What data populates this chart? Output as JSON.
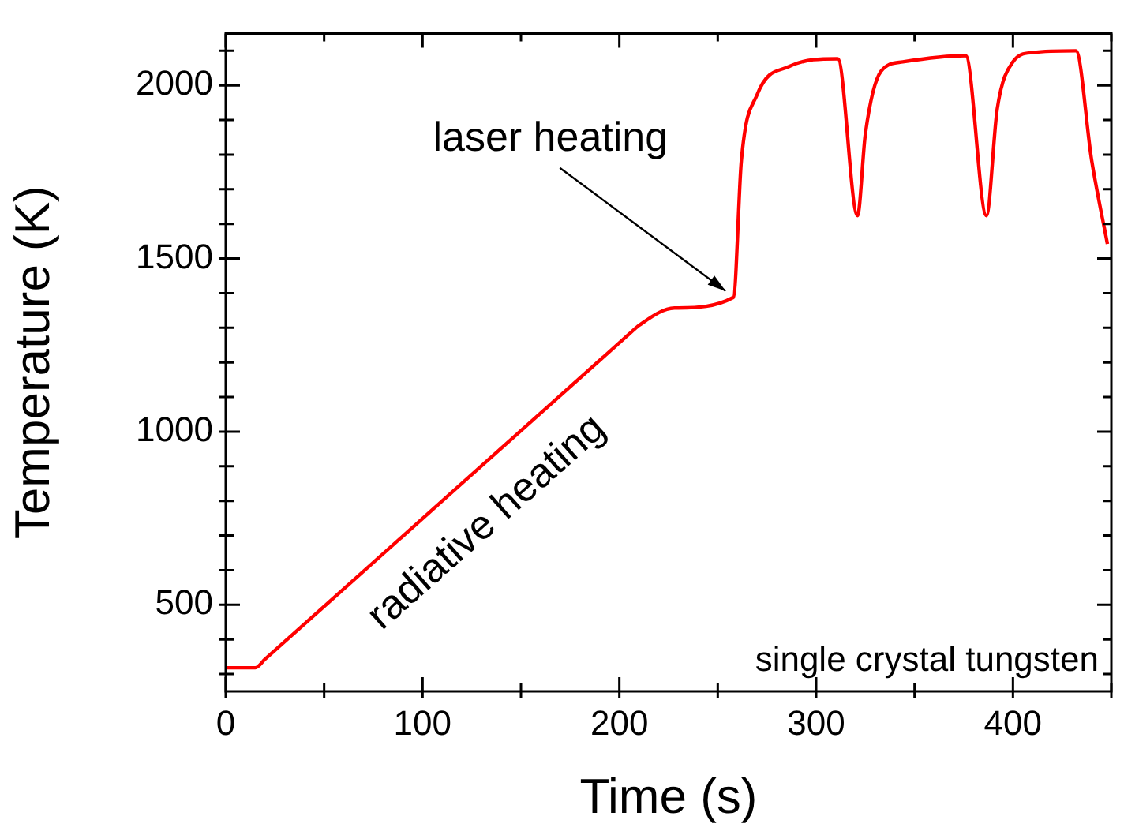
{
  "chart_data": {
    "type": "line",
    "xlabel": "Time (s)",
    "ylabel": "Temperature (K)",
    "x": [
      0,
      15,
      20,
      205,
      210,
      228,
      258,
      262,
      270,
      286,
      311,
      321,
      325,
      333,
      344,
      376,
      386.5,
      392,
      400,
      410,
      432,
      440,
      448
    ],
    "series": [
      {
        "color": "#ff0000",
        "values": [
          318,
          318,
          343,
          1282,
          1307,
          1357,
          1388,
          1783,
          1973,
          2054,
          2077,
          1624,
          1860,
          2041,
          2068,
          2086,
          1624,
          1932,
          2068,
          2095,
          2100,
          1783,
          1542
        ]
      }
    ],
    "xlim": [
      0,
      450
    ],
    "ylim": [
      250,
      2150
    ],
    "xticks": [
      0,
      {
        "value": 50,
        "label": null
      },
      100,
      {
        "value": 150,
        "label": null
      },
      200,
      {
        "value": 250,
        "label": null
      },
      300,
      {
        "value": 350,
        "label": null
      },
      400,
      {
        "value": 450,
        "label": null
      }
    ],
    "yticks": [
      {
        "value": 300,
        "label": null
      },
      {
        "value": 400,
        "label": null
      },
      500,
      {
        "value": 600,
        "label": null
      },
      {
        "value": 700,
        "label": null
      },
      {
        "value": 800,
        "label": null
      },
      {
        "value": 900,
        "label": null
      },
      1000,
      {
        "value": 1100,
        "label": null
      },
      {
        "value": 1200,
        "label": null
      },
      {
        "value": 1300,
        "label": null
      },
      {
        "value": 1400,
        "label": null
      },
      1500,
      {
        "value": 1600,
        "label": null
      },
      {
        "value": 1700,
        "label": null
      },
      {
        "value": 1800,
        "label": null
      },
      {
        "value": 1900,
        "label": null
      },
      2000,
      {
        "value": 2100,
        "label": null
      }
    ],
    "annotations": [
      {
        "text": "laser heating",
        "x": 258,
        "y": 1388
      },
      "radiative heating",
      "single crystal tungsten"
    ]
  }
}
